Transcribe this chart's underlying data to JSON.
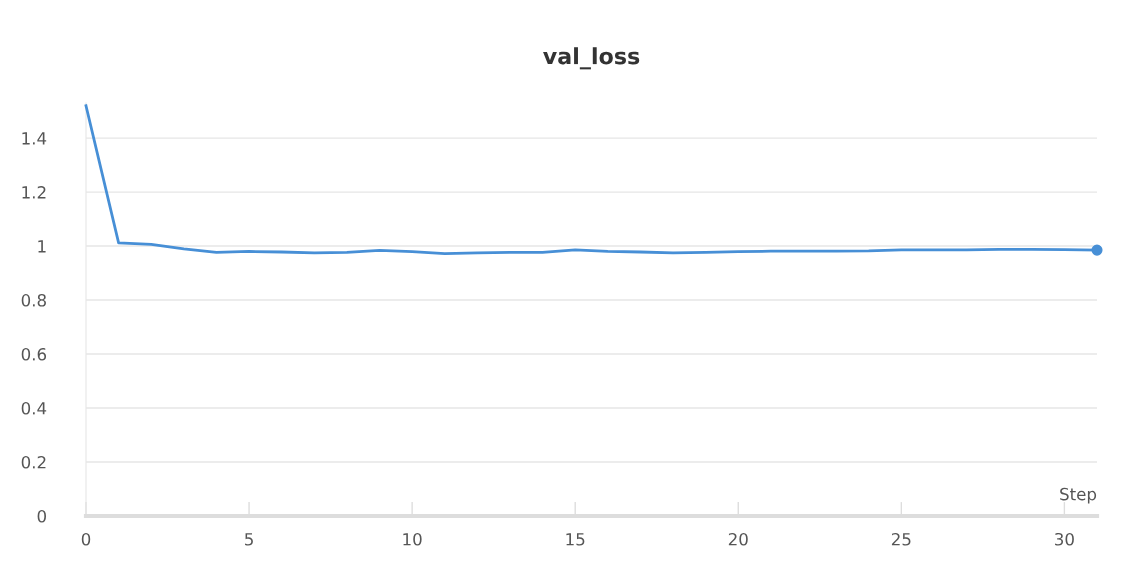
{
  "chart_data": {
    "type": "line",
    "title": "val_loss",
    "xlabel": "Step",
    "x": [
      0,
      1,
      2,
      3,
      4,
      5,
      6,
      7,
      8,
      9,
      10,
      11,
      12,
      13,
      14,
      15,
      16,
      17,
      18,
      19,
      20,
      21,
      22,
      23,
      24,
      25,
      26,
      27,
      28,
      29,
      30,
      31
    ],
    "series": [
      {
        "color": "#478fd6",
        "values": [
          1.52,
          1.012,
          1.006,
          0.99,
          0.977,
          0.98,
          0.978,
          0.975,
          0.977,
          0.984,
          0.979,
          0.972,
          0.975,
          0.977,
          0.977,
          0.986,
          0.98,
          0.978,
          0.975,
          0.977,
          0.979,
          0.981,
          0.981,
          0.981,
          0.982,
          0.986,
          0.986,
          0.986,
          0.988,
          0.988,
          0.987,
          0.985
        ]
      }
    ],
    "xlim": [
      0,
      31
    ],
    "xticks": [
      0,
      5,
      10,
      15,
      20,
      25,
      30
    ],
    "ylim": [
      0,
      1.53
    ],
    "yticks": [
      0,
      0.2,
      0.4,
      0.6,
      0.8,
      1,
      1.2,
      1.4
    ],
    "grid": "y",
    "line_style": "solid",
    "legend": false
  }
}
